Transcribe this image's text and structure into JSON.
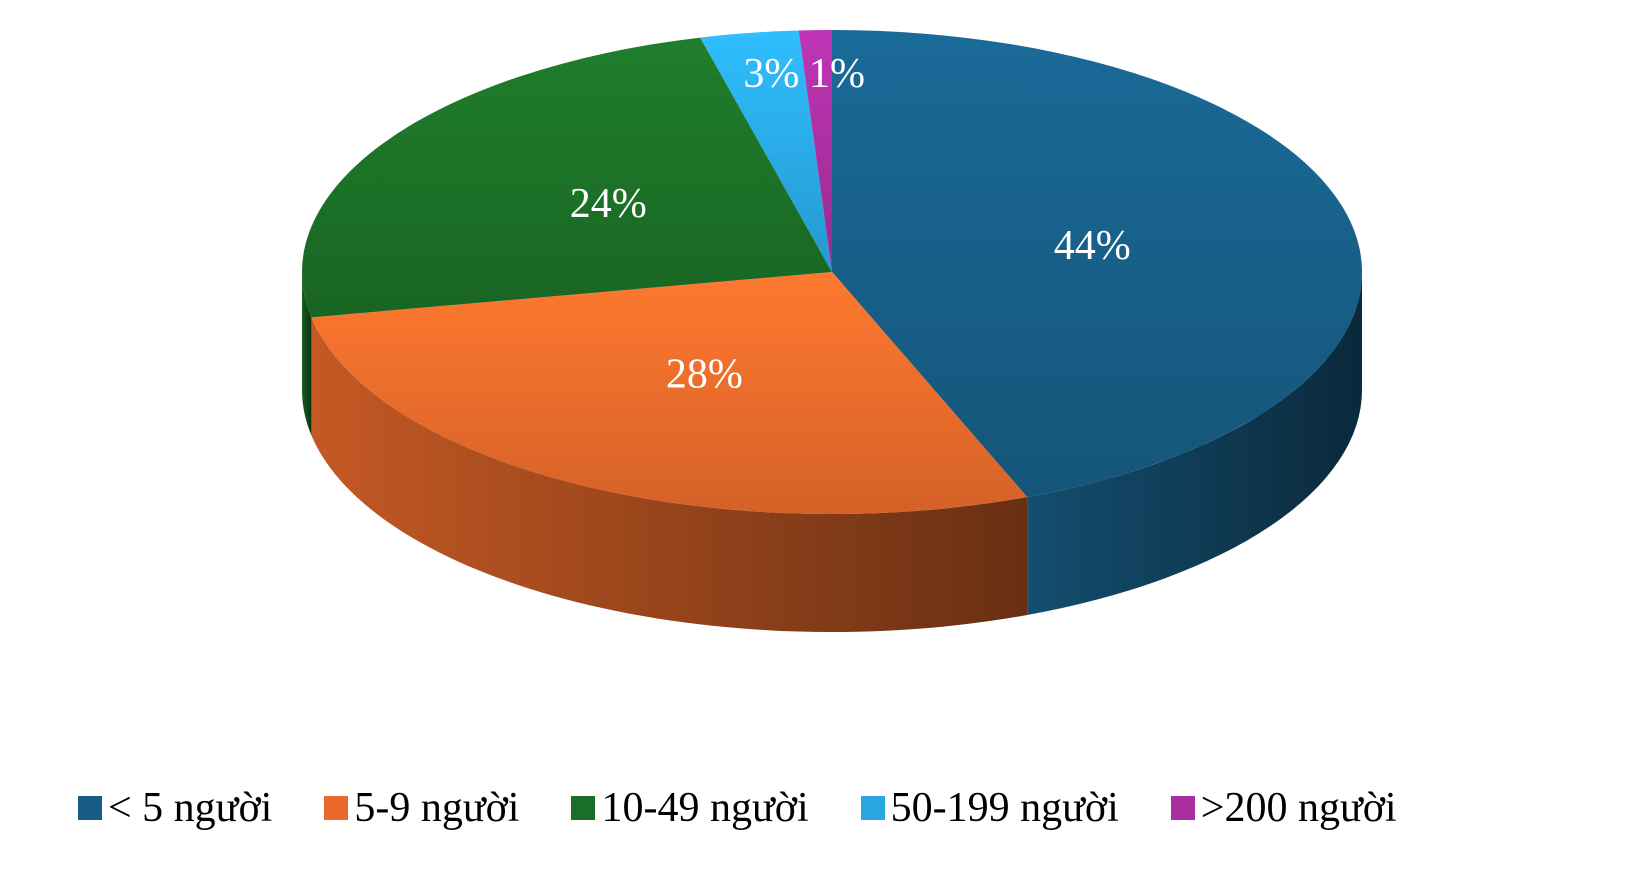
{
  "chart_data": {
    "type": "pie",
    "three_d": true,
    "categories": [
      "< 5 người",
      "5-9 người",
      "10-49 người",
      "50-199 người",
      ">200 người"
    ],
    "values": [
      44,
      28,
      24,
      3,
      1
    ],
    "data_labels": [
      "44%",
      "28%",
      "24%",
      "3%",
      "1%"
    ],
    "colors": [
      "#175c84",
      "#e8692a",
      "#1b6e26",
      "#29a5e0",
      "#a62e9e"
    ],
    "title": "",
    "legend_position": "bottom"
  }
}
